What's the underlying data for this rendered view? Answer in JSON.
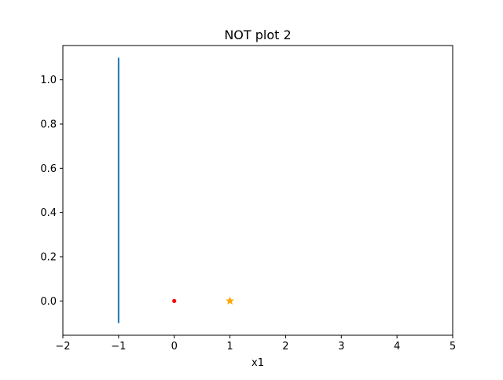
{
  "chart_data": {
    "type": "scatter",
    "title": "NOT plot 2",
    "xlabel": "x1",
    "ylabel": "",
    "xlim": [
      -2,
      5
    ],
    "ylim": [
      -0.155,
      1.155
    ],
    "xticks": [
      -2,
      -1,
      0,
      1,
      2,
      3,
      4,
      5
    ],
    "xtick_labels": [
      "−2",
      "−1",
      "0",
      "1",
      "2",
      "3",
      "4",
      "5"
    ],
    "yticks": [
      0.0,
      0.2,
      0.4,
      0.6,
      0.8,
      1.0
    ],
    "ytick_labels": [
      "0.0",
      "0.2",
      "0.4",
      "0.6",
      "0.8",
      "1.0"
    ],
    "grid": false,
    "legend": "none",
    "lines": [
      {
        "x": [
          -1,
          -1
        ],
        "y": [
          -0.1,
          1.1
        ],
        "color": "#1f77b4"
      }
    ],
    "points": [
      {
        "x": 0,
        "y": 0,
        "marker": "dot",
        "color": "#ff0000"
      },
      {
        "x": 1,
        "y": 0,
        "marker": "star",
        "color": "#ffa500"
      }
    ]
  }
}
